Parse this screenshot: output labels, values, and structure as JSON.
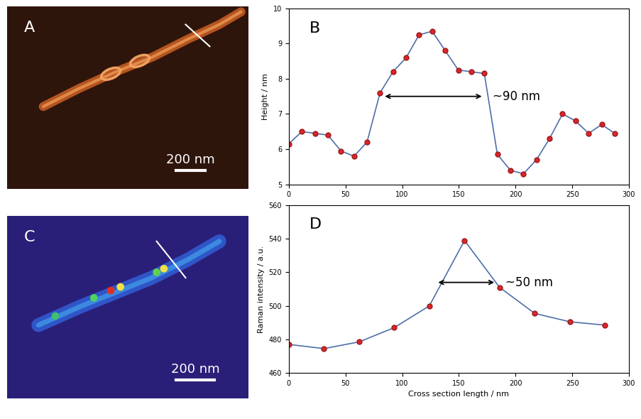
{
  "chart_data": [
    {
      "type": "image",
      "label": "A",
      "scale_bar": "200 nm"
    },
    {
      "type": "line",
      "label": "B",
      "y_label": "Height / nm",
      "x": [
        0,
        11.5,
        23,
        34.5,
        46,
        57.5,
        69,
        80.5,
        92,
        103.5,
        115,
        126.5,
        138,
        149.5,
        161,
        172.5,
        184,
        195.5,
        207,
        218.5,
        230,
        241.5,
        253,
        264.5,
        276,
        287.5
      ],
      "series": [
        {
          "color": "#4f6fa8",
          "marker": "o",
          "values": [
            6.15,
            6.5,
            6.45,
            6.4,
            5.95,
            5.8,
            6.2,
            7.6,
            8.2,
            8.6,
            9.25,
            9.35,
            8.8,
            8.25,
            8.2,
            8.15,
            5.85,
            5.4,
            5.3,
            5.7,
            6.3,
            7.0,
            6.8,
            6.45,
            6.7,
            6.45
          ]
        }
      ],
      "xlim": [
        0,
        300
      ],
      "xticks": [
        0,
        50,
        100,
        150,
        200,
        250,
        300
      ],
      "ylim": [
        5,
        10
      ],
      "yticks": [
        5,
        6,
        7,
        8,
        9,
        10
      ],
      "annotations": [
        {
          "text": "~90 nm",
          "x": [
            83,
            172
          ],
          "y": 7.5
        }
      ]
    },
    {
      "type": "image",
      "label": "C",
      "scale_bar": "200 nm"
    },
    {
      "type": "line",
      "label": "D",
      "x_label": "Cross section length / nm",
      "y_label": "Raman intensity / a.u.",
      "x": [
        0,
        31,
        62,
        93,
        124,
        155,
        186,
        217,
        248,
        279
      ],
      "series": [
        {
          "color": "#4f6fa8",
          "marker": "o",
          "values": [
            477,
            474.5,
            478.5,
            487,
            500,
            539,
            511,
            495.5,
            490.5,
            488.5
          ]
        }
      ],
      "xlim": [
        0,
        300
      ],
      "xticks": [
        0,
        50,
        100,
        150,
        200,
        250,
        300
      ],
      "ylim": [
        460,
        560
      ],
      "yticks": [
        460,
        480,
        500,
        520,
        540,
        560
      ],
      "annotations": [
        {
          "text": "~50 nm",
          "x": [
            130,
            183
          ],
          "y": 514
        }
      ]
    }
  ]
}
